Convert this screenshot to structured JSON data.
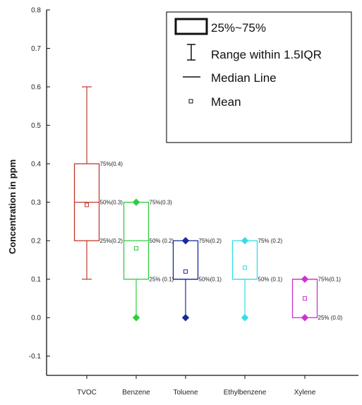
{
  "chart_data": {
    "type": "box",
    "ylabel": "Concentration in ppm",
    "xlabel": "",
    "ylim": [
      -0.15,
      0.8
    ],
    "y_ticks": [
      -0.1,
      0.0,
      0.1,
      0.2,
      0.3,
      0.4,
      0.5,
      0.6,
      0.7,
      0.8
    ],
    "y_tick_labels": [
      "-0.1",
      "0.0",
      "0.1",
      "0.2",
      "0.3",
      "0.4",
      "0.5",
      "0.6",
      "0.7",
      "0.8"
    ],
    "categories": [
      "TVOC",
      "Benzene",
      "Toluene",
      "Ethylbenzene",
      "Xylene"
    ],
    "boxes": [
      {
        "name": "TVOC",
        "color": "#c0392b",
        "whisker_low": 0.1,
        "q1": 0.2,
        "median": 0.3,
        "q3": 0.4,
        "whisker_high": 0.6,
        "mean": 0.293,
        "whisker_marker": "cap",
        "labels": {
          "q3": "75%(0.4)",
          "median": "50%(0.3)",
          "q1": "25%(0.2)"
        }
      },
      {
        "name": "Benzene",
        "color": "#2ecc40",
        "whisker_low": 0.0,
        "q1": 0.1,
        "median": 0.2,
        "q3": 0.3,
        "whisker_high": 0.3,
        "mean": 0.18,
        "whisker_marker": "diamond",
        "labels": {
          "q3": "75%(0.3)",
          "median": "50% (0.2)",
          "q1": "25% (0.1)"
        }
      },
      {
        "name": "Toluene",
        "color": "#1a2a9c",
        "whisker_low": 0.0,
        "q1": 0.1,
        "median": 0.1,
        "q3": 0.2,
        "whisker_high": 0.2,
        "mean": 0.12,
        "whisker_marker": "diamond",
        "labels": {
          "q3": "75%(0.2)",
          "median": "50%(0.1)"
        }
      },
      {
        "name": "Ethylbenzene",
        "color": "#33dde6",
        "whisker_low": 0.0,
        "q1": 0.1,
        "median": 0.1,
        "q3": 0.2,
        "whisker_high": 0.2,
        "mean": 0.13,
        "whisker_marker": "diamond",
        "labels": {
          "q3": "75% (0.2)",
          "median": "50% (0.1)"
        }
      },
      {
        "name": "Xylene",
        "color": "#cc33cc",
        "whisker_low": 0.0,
        "q1": 0.0,
        "median": 0.1,
        "q3": 0.1,
        "whisker_high": 0.1,
        "mean": 0.05,
        "whisker_marker": "diamond",
        "labels": {
          "q3": "75%(0.1)",
          "q1": "25% (0.0)"
        }
      }
    ],
    "legend": {
      "position": "top-right",
      "entries": [
        "25%~75%",
        "Range within 1.5IQR",
        "Median Line",
        "Mean"
      ]
    },
    "grid": false
  }
}
